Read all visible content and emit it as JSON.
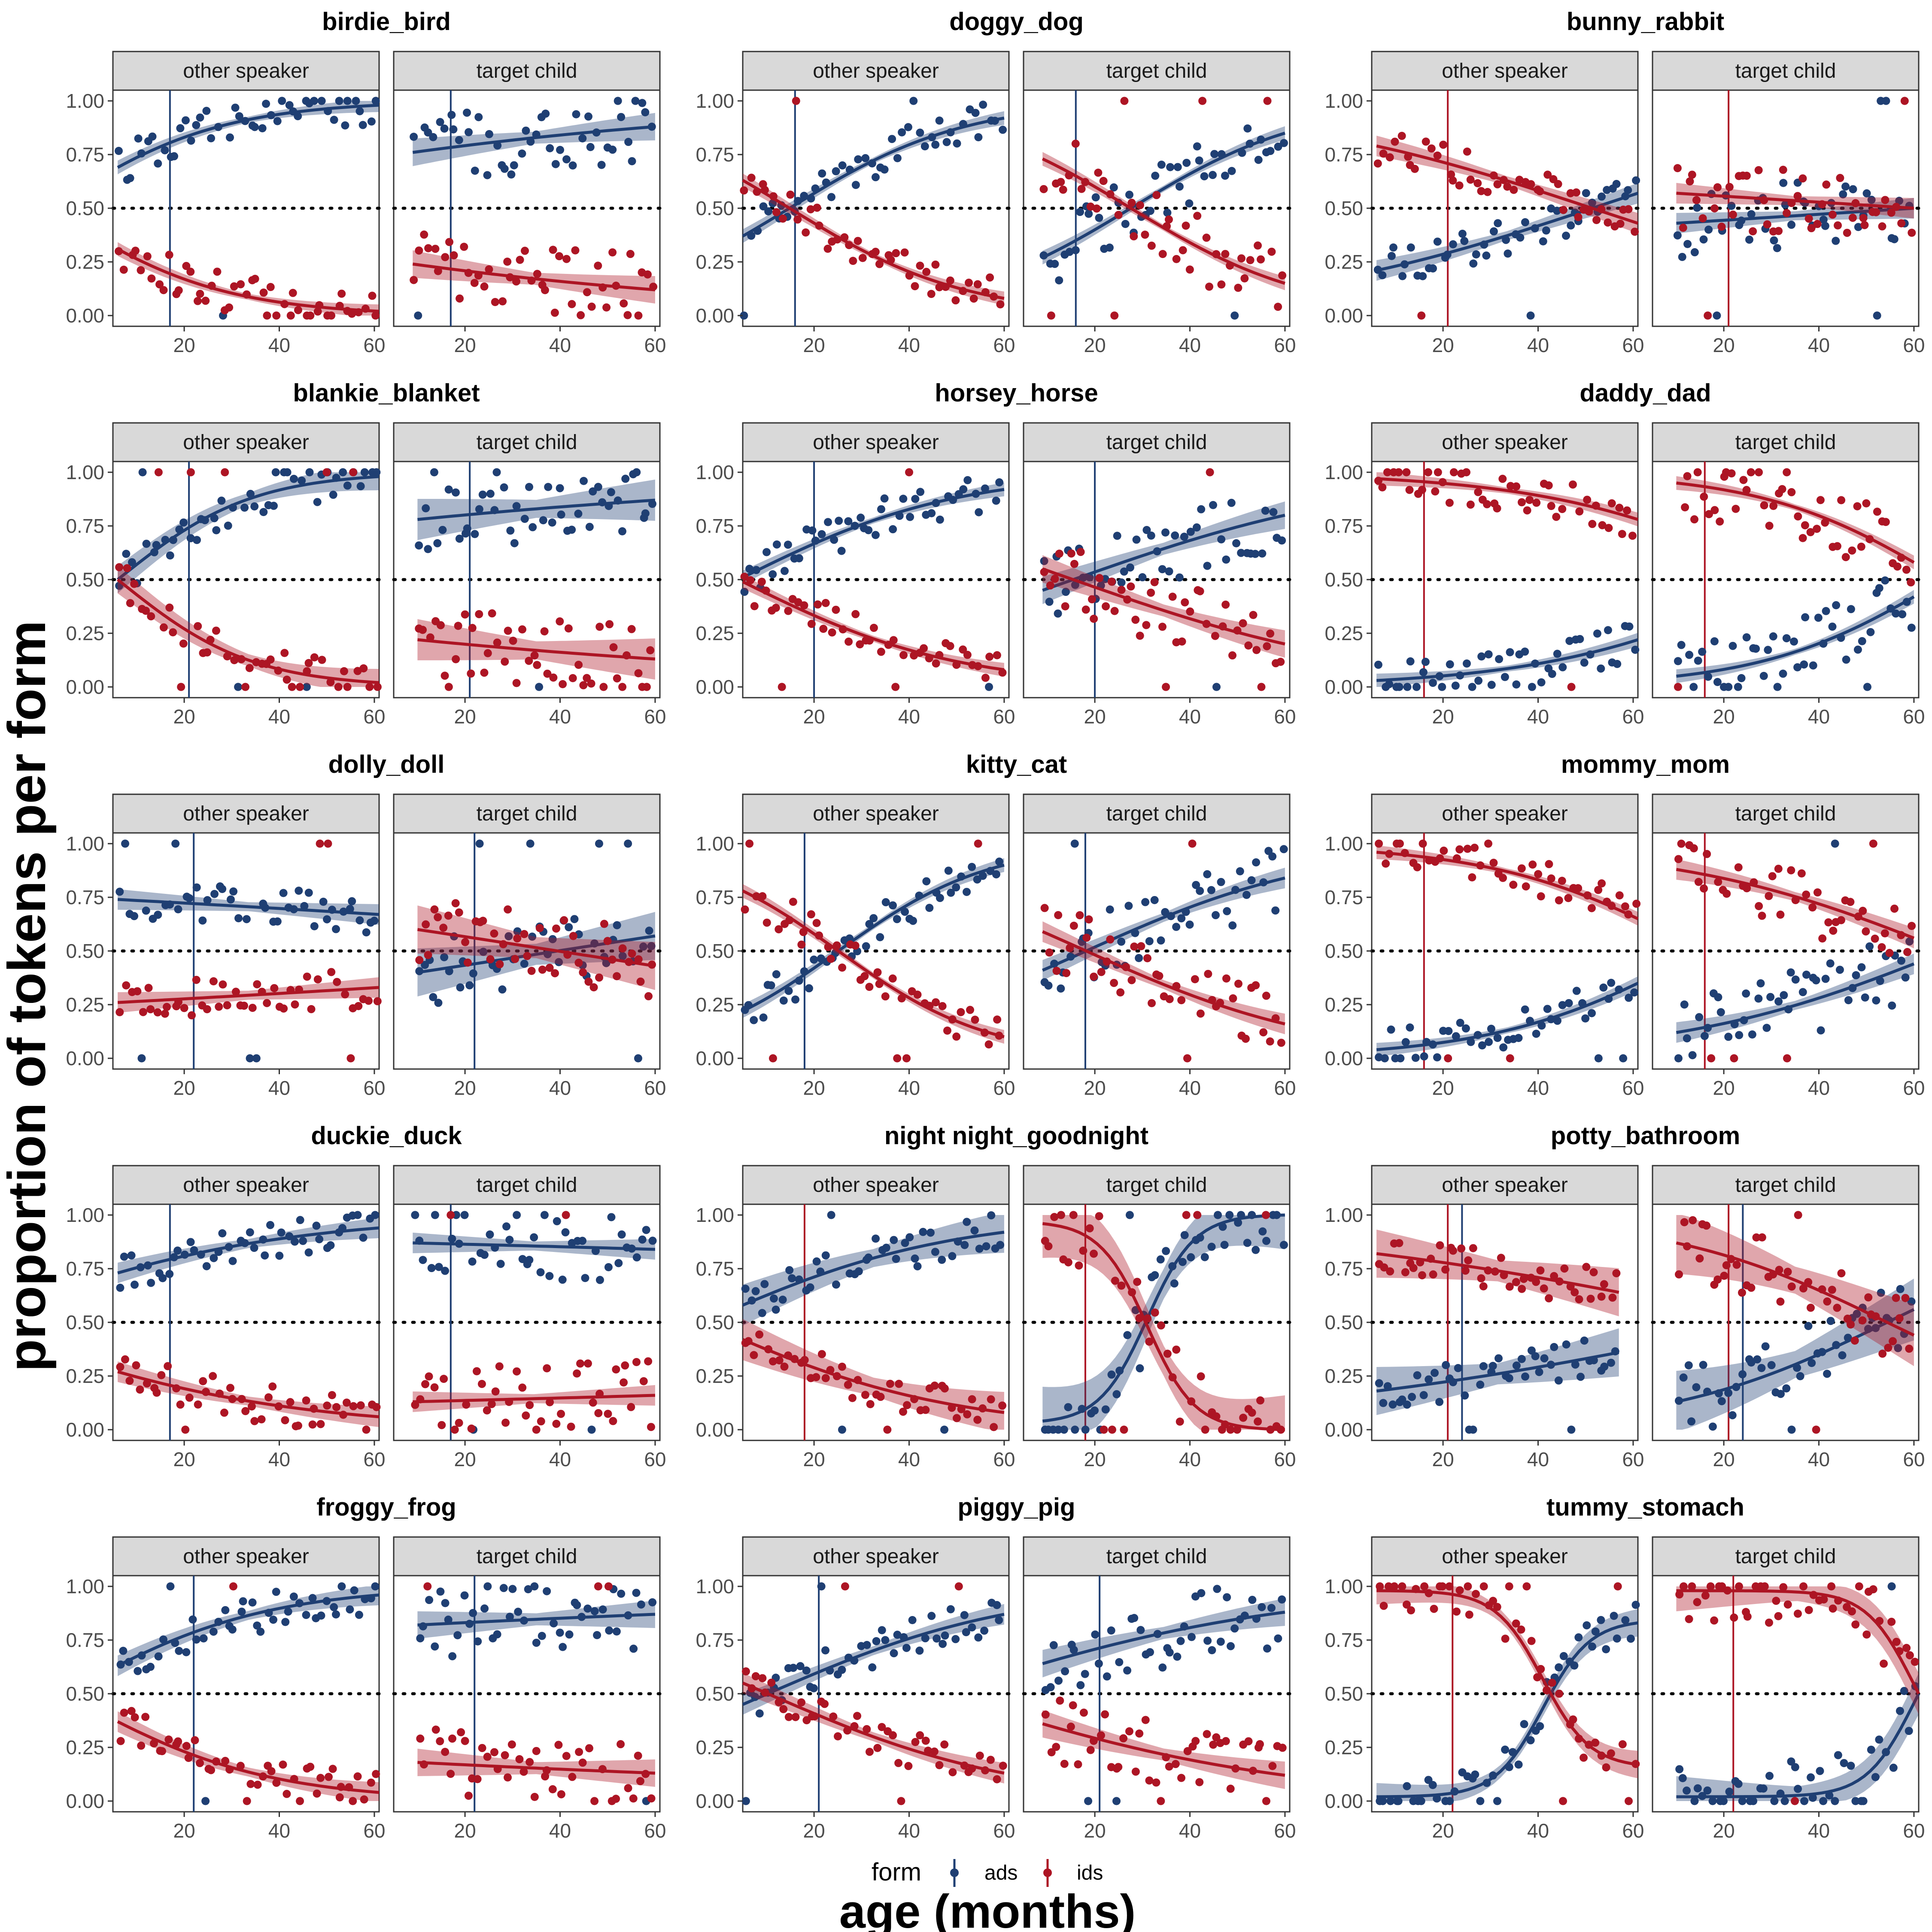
{
  "chart_data": {
    "type": "scatter",
    "ylabel": "proportion of tokens per form",
    "xlabel": "age (months)",
    "legend": {
      "title": "form",
      "position": "bottom",
      "entries": [
        {
          "name": "ads",
          "color": "#1f3f73"
        },
        {
          "name": "ids",
          "color": "#ad1524"
        }
      ]
    },
    "facet_labels": [
      "other speaker",
      "target child"
    ],
    "xlim": [
      5,
      61
    ],
    "ylim": [
      -0.05,
      1.05
    ],
    "x_ticks": [
      20,
      40,
      60
    ],
    "x_tick_labels": [
      "20",
      "40",
      "60"
    ],
    "y_ticks": [
      0,
      0.25,
      0.5,
      0.75,
      1
    ],
    "y_tick_labels": [
      "0.00",
      "0.25",
      "0.50",
      "0.75",
      "1.00"
    ],
    "reference_line_y": 0.5,
    "colors": {
      "ads": "#1f3f73",
      "ids": "#ad1524"
    },
    "panels": [
      {
        "title": "birdie_bird",
        "vline": 17,
        "vline_form": "ads",
        "other": {
          "x": [
            6,
            61
          ],
          "ads": [
            0.69,
            0.98
          ],
          "ids": [
            0.31,
            0.02
          ],
          "band": 0.02
        },
        "target": {
          "x": [
            9,
            60
          ],
          "ads": [
            0.76,
            0.88
          ],
          "ids": [
            0.24,
            0.12
          ],
          "band": 0.04
        }
      },
      {
        "title": "doggy_dog",
        "vline": 16,
        "vline_form": "ads",
        "other": {
          "x": [
            5,
            60
          ],
          "ads": [
            0.37,
            0.92
          ],
          "ids": [
            0.63,
            0.08
          ],
          "band": 0.02
        },
        "target": {
          "x": [
            9,
            60
          ],
          "ads": [
            0.27,
            0.85
          ],
          "ids": [
            0.73,
            0.15
          ],
          "band": 0.02
        }
      },
      {
        "title": "bunny_rabbit",
        "vline": 21,
        "vline_form": "ids",
        "other": {
          "x": [
            6,
            61
          ],
          "ads": [
            0.21,
            0.57
          ],
          "ids": [
            0.79,
            0.43
          ],
          "band": 0.03
        },
        "target": {
          "x": [
            10,
            60
          ],
          "ads": [
            0.43,
            0.5
          ],
          "ids": [
            0.57,
            0.5
          ],
          "band": 0.03
        }
      },
      {
        "title": "blankie_blanket",
        "vline": 21,
        "vline_form": "ads",
        "other": {
          "x": [
            6,
            61
          ],
          "ads": [
            0.5,
            0.98
          ],
          "ids": [
            0.5,
            0.02
          ],
          "band": 0.04
        },
        "target": {
          "x": [
            10,
            60
          ],
          "ads": [
            0.78,
            0.87
          ],
          "ids": [
            0.22,
            0.13
          ],
          "band": 0.06
        }
      },
      {
        "title": "horsey_horse",
        "vline": 20,
        "vline_form": "ads",
        "other": {
          "x": [
            5,
            60
          ],
          "ads": [
            0.51,
            0.92
          ],
          "ids": [
            0.49,
            0.08
          ],
          "band": 0.02
        },
        "target": {
          "x": [
            9,
            60
          ],
          "ads": [
            0.45,
            0.8
          ],
          "ids": [
            0.55,
            0.2
          ],
          "band": 0.04
        }
      },
      {
        "title": "daddy_dad",
        "vline": 16,
        "vline_form": "ids",
        "other": {
          "x": [
            6,
            61
          ],
          "ads": [
            0.03,
            0.22
          ],
          "ids": [
            0.97,
            0.78
          ],
          "band": 0.02
        },
        "target": {
          "x": [
            10,
            60
          ],
          "ads": [
            0.05,
            0.42
          ],
          "ids": [
            0.95,
            0.58
          ],
          "band": 0.02
        }
      },
      {
        "title": "dolly_doll",
        "vline": 22,
        "vline_form": "ads",
        "other": {
          "x": [
            6,
            61
          ],
          "ads": [
            0.74,
            0.67
          ],
          "ids": [
            0.26,
            0.33
          ],
          "band": 0.03
        },
        "target": {
          "x": [
            10,
            60
          ],
          "ads": [
            0.4,
            0.57
          ],
          "ids": [
            0.6,
            0.43
          ],
          "band": 0.07
        }
      },
      {
        "title": "kitty_cat",
        "vline": 18,
        "vline_form": "ads",
        "other": {
          "x": [
            5,
            60
          ],
          "ads": [
            0.22,
            0.9
          ],
          "ids": [
            0.78,
            0.1
          ],
          "band": 0.02
        },
        "target": {
          "x": [
            9,
            60
          ],
          "ads": [
            0.41,
            0.84
          ],
          "ids": [
            0.59,
            0.16
          ],
          "band": 0.03
        }
      },
      {
        "title": "mommy_mom",
        "vline": 16,
        "vline_form": "ids",
        "other": {
          "x": [
            6,
            61
          ],
          "ads": [
            0.04,
            0.35
          ],
          "ids": [
            0.96,
            0.65
          ],
          "band": 0.02
        },
        "target": {
          "x": [
            10,
            60
          ],
          "ads": [
            0.12,
            0.44
          ],
          "ids": [
            0.88,
            0.56
          ],
          "band": 0.03
        }
      },
      {
        "title": "duckie_duck",
        "vline": 17,
        "vline_form": "ads",
        "other": {
          "x": [
            6,
            61
          ],
          "ads": [
            0.73,
            0.94
          ],
          "ids": [
            0.27,
            0.06
          ],
          "band": 0.03
        },
        "target": {
          "x": [
            9,
            60
          ],
          "ads": [
            0.87,
            0.84
          ],
          "ids": [
            0.13,
            0.16
          ],
          "band": 0.03
        }
      },
      {
        "title": "night night_goodnight",
        "vline": 18,
        "vline_form": "ids",
        "other": {
          "x": [
            5,
            60
          ],
          "ads": [
            0.58,
            0.92
          ],
          "ids": [
            0.42,
            0.08
          ],
          "band": 0.06
        },
        "target": {
          "x": [
            9,
            60
          ],
          "ads": [
            0.04,
            1.0
          ],
          "ids": [
            0.96,
            0.0
          ],
          "band": 0.1,
          "sigmoid_mid": 31
        }
      },
      {
        "title": "potty_bathroom",
        "vline": 21,
        "vline2": 24,
        "vline_form": "ids",
        "other": {
          "x": [
            6,
            57
          ],
          "ads": [
            0.18,
            0.36
          ],
          "ids": [
            0.82,
            0.64
          ],
          "band": 0.07
        },
        "target": {
          "x": [
            10,
            60
          ],
          "ads": [
            0.13,
            0.56
          ],
          "ids": [
            0.87,
            0.44
          ],
          "band": 0.09
        }
      },
      {
        "title": "froggy_frog",
        "vline": 22,
        "vline_form": "ads",
        "other": {
          "x": [
            6,
            61
          ],
          "ads": [
            0.63,
            0.96
          ],
          "ids": [
            0.37,
            0.04
          ],
          "band": 0.03
        },
        "target": {
          "x": [
            10,
            60
          ],
          "ads": [
            0.82,
            0.87
          ],
          "ids": [
            0.18,
            0.13
          ],
          "band": 0.04
        }
      },
      {
        "title": "piggy_pig",
        "vline": 21,
        "vline_form": "ads",
        "other": {
          "x": [
            5,
            60
          ],
          "ads": [
            0.45,
            0.87
          ],
          "ids": [
            0.55,
            0.13
          ],
          "band": 0.03
        },
        "target": {
          "x": [
            9,
            60
          ],
          "ads": [
            0.64,
            0.88
          ],
          "ids": [
            0.36,
            0.12
          ],
          "band": 0.04
        }
      },
      {
        "title": "tummy_stomach",
        "vline": 22,
        "vline_form": "ids",
        "other": {
          "x": [
            6,
            61
          ],
          "ads": [
            0.02,
            0.83
          ],
          "ids": [
            0.98,
            0.17
          ],
          "band": 0.04,
          "sigmoid_mid": 41
        },
        "target": {
          "x": [
            10,
            61
          ],
          "ads": [
            0.02,
            0.5
          ],
          "ids": [
            0.98,
            0.5
          ],
          "band": 0.06,
          "sigmoid_mid": 60
        }
      }
    ]
  }
}
